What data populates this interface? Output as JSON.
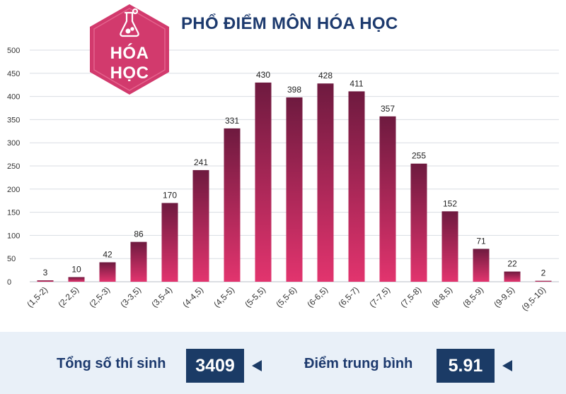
{
  "badge": {
    "line1": "HÓA",
    "line2": "HỌC",
    "icon": "chemistry-flask-icon"
  },
  "colors": {
    "bar_top": "#6e1a3f",
    "bar_bottom": "#e2346e",
    "title": "#1d3a6e",
    "badge": "#d23a6d",
    "footer_bg": "#e9f0f8",
    "stat_box": "#1b3b66"
  },
  "chart_data": {
    "type": "bar",
    "title": "PHỔ ĐIỂM MÔN HÓA HỌC",
    "xlabel": "",
    "ylabel": "",
    "ylim": [
      0,
      500
    ],
    "yticks": [
      0,
      50,
      100,
      150,
      200,
      250,
      300,
      350,
      400,
      450,
      500
    ],
    "grid": true,
    "categories": [
      "(1,5-2)",
      "(2-2,5)",
      "(2,5-3)",
      "(3-3,5)",
      "(3,5-4)",
      "(4-4,5)",
      "(4,5-5)",
      "(5-5,5)",
      "(5,5-6)",
      "(6-6,5)",
      "(6,5-7)",
      "(7-7,5)",
      "(7,5-8)",
      "(8-8,5)",
      "(8,5-9)",
      "(9-9,5)",
      "(9,5-10)"
    ],
    "values": [
      3,
      10,
      42,
      86,
      170,
      241,
      331,
      430,
      398,
      428,
      411,
      357,
      255,
      152,
      71,
      22,
      2
    ]
  },
  "stats": {
    "total_label": "Tổng số thí sinh",
    "total_value": "3409",
    "average_label": "Điểm trung bình",
    "average_value": "5.91"
  }
}
